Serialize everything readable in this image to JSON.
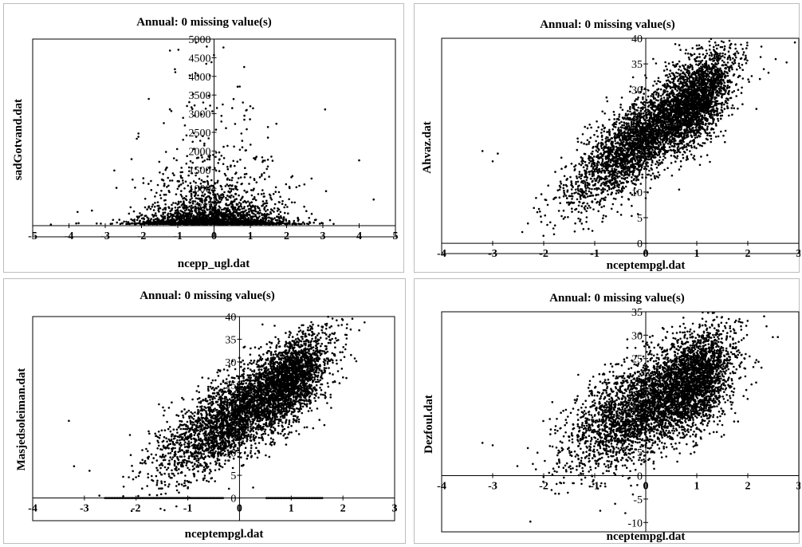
{
  "chart_data": [
    {
      "type": "scatter",
      "title": "Annual: 0 missing value(s)",
      "xlabel": "ncepp_ugl.dat",
      "ylabel": "sadGotvand.dat",
      "xlim": [
        -5,
        5
      ],
      "ylim": [
        -300,
        5000
      ],
      "xticks": [
        -5,
        -4,
        -3,
        -2,
        -1,
        0,
        1,
        2,
        3,
        4,
        5
      ],
      "yticks": [
        500,
        1000,
        1500,
        2000,
        2500,
        3000,
        3500,
        4000,
        4500,
        5000
      ],
      "n_points": 3000,
      "cluster": {
        "x_mean": 0,
        "x_sd": 1.0,
        "y_median": 130
      },
      "outliers": [
        {
          "x": -4.5,
          "y": 30
        },
        {
          "x": -3.8,
          "y": 60
        },
        {
          "x": 4.0,
          "y": 1750
        },
        {
          "x": 4.4,
          "y": 700
        },
        {
          "x": 1.0,
          "y": 3200
        },
        {
          "x": 0.5,
          "y": 3150
        },
        {
          "x": -0.3,
          "y": 3300
        },
        {
          "x": -0.2,
          "y": 4800
        },
        {
          "x": 0.9,
          "y": 3100
        }
      ],
      "grid": false
    },
    {
      "type": "scatter",
      "title": "Annual: 0 missing value(s)",
      "xlabel": "nceptempgl.dat",
      "ylabel": "Ahvaz.dat",
      "xlim": [
        -4,
        3
      ],
      "ylim": [
        -2,
        40
      ],
      "xticks": [
        -4,
        -3,
        -2,
        -1,
        0,
        1,
        2,
        3
      ],
      "yticks": [
        0,
        5,
        10,
        15,
        20,
        25,
        30,
        35,
        40
      ],
      "n_points": 5000,
      "relation": {
        "slope": 7.0,
        "intercept": 21,
        "noise_sd": 4.0
      },
      "outliers": [
        {
          "x": -3.2,
          "y": 18
        },
        {
          "x": -2.9,
          "y": 17.5
        },
        {
          "x": -3.0,
          "y": 16
        }
      ],
      "grid": false
    },
    {
      "type": "scatter",
      "title": "Annual: 0 missing value(s)",
      "xlabel": "nceptempgl.dat",
      "ylabel": "Masjedsoleiman.dat",
      "xlim": [
        -4,
        3
      ],
      "ylim": [
        -5,
        40
      ],
      "xticks": [
        -4,
        -3,
        -2,
        -1,
        0,
        1,
        2,
        3
      ],
      "yticks": [
        0,
        5,
        10,
        15,
        20,
        25,
        30,
        35,
        40
      ],
      "n_points": 5000,
      "relation": {
        "slope": 7.0,
        "intercept": 19,
        "noise_sd": 4.5
      },
      "zero_row": {
        "x_from": -2.6,
        "x_to": 1.6,
        "y": 0
      },
      "outliers": [
        {
          "x": -3.3,
          "y": 17
        },
        {
          "x": -3.2,
          "y": 7
        },
        {
          "x": -2.9,
          "y": 6
        }
      ],
      "grid": false
    },
    {
      "type": "scatter",
      "title": "Annual: 0 missing value(s)",
      "xlabel": "nceptempgl.dat",
      "ylabel": "Dezfoul.dat",
      "xlim": [
        -4,
        3
      ],
      "ylim": [
        -12,
        35
      ],
      "xticks": [
        -4,
        -3,
        -2,
        -1,
        0,
        1,
        2,
        3
      ],
      "yticks": [
        -10,
        -5,
        0,
        5,
        10,
        15,
        20,
        25,
        30,
        35
      ],
      "n_points": 5000,
      "relation": {
        "slope": 5.5,
        "intercept": 15,
        "noise_sd": 5.0
      },
      "outliers": [
        {
          "x": -3.2,
          "y": 7
        },
        {
          "x": -3.0,
          "y": 6.5
        },
        {
          "x": -0.6,
          "y": -6
        },
        {
          "x": -0.4,
          "y": -8
        }
      ],
      "grid": false
    }
  ]
}
